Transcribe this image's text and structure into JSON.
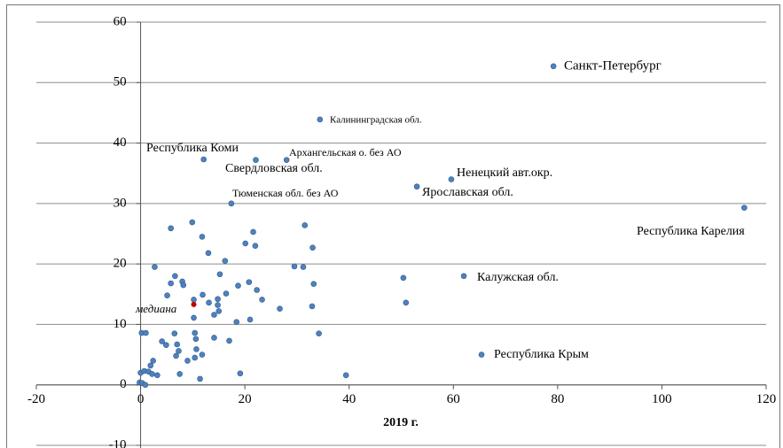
{
  "chart_data": {
    "type": "scatter",
    "x_label": "2019 г.",
    "xlim": [
      -20,
      120
    ],
    "xticks": [
      -20,
      0,
      20,
      40,
      60,
      80,
      100,
      120
    ],
    "ylim": [
      -10,
      60
    ],
    "yticks": [
      -10,
      0,
      10,
      20,
      30,
      40,
      50,
      60
    ],
    "grid": true,
    "series": [
      {
        "color": "#4f81bd",
        "x": [
          79.2,
          34.4,
          12.1,
          22.1,
          28.0,
          59.6,
          53.0,
          17.4,
          115.8,
          62.0,
          65.4,
          5.8,
          9.9,
          11.8,
          21.6,
          31.5,
          20.1,
          22.0,
          33.0,
          13.0,
          16.2,
          2.7,
          29.5,
          31.2,
          6.6,
          15.2,
          50.4,
          8.0,
          8.2,
          5.8,
          18.7,
          20.8,
          33.2,
          22.3,
          5.1,
          11.9,
          16.4,
          10.2,
          14.8,
          23.3,
          13.1,
          14.8,
          32.9,
          50.9,
          26.7,
          15.0,
          14.1,
          10.2,
          21.0,
          18.4,
          0.2,
          1.0,
          6.5,
          10.4,
          10.6,
          34.2,
          14.1,
          17.0,
          4.1,
          4.9,
          7.0,
          7.3,
          10.7,
          6.8,
          11.8,
          10.4,
          2.4,
          9.0,
          1.9,
          0.0,
          0.7,
          1.5,
          3.2,
          2.2,
          7.5,
          19.1,
          39.4,
          11.4,
          -0.2,
          0.3,
          0.9
        ],
        "values": [
          52.7,
          43.9,
          37.3,
          37.2,
          37.2,
          34.0,
          32.8,
          30.0,
          29.3,
          18.0,
          5.0,
          25.9,
          26.9,
          24.5,
          25.3,
          26.4,
          23.4,
          23.0,
          22.7,
          21.8,
          20.5,
          19.5,
          19.6,
          19.5,
          18.0,
          18.3,
          17.7,
          17.1,
          16.5,
          16.8,
          16.4,
          17.0,
          16.7,
          15.7,
          14.8,
          14.9,
          15.1,
          14.1,
          14.2,
          14.1,
          13.6,
          13.2,
          13.0,
          13.6,
          12.6,
          12.2,
          11.6,
          11.1,
          10.8,
          10.4,
          8.6,
          8.6,
          8.5,
          8.6,
          7.6,
          8.5,
          7.8,
          7.3,
          7.2,
          6.6,
          6.7,
          5.6,
          5.9,
          4.8,
          5.0,
          4.5,
          4.0,
          4.0,
          3.2,
          2.0,
          2.3,
          2.2,
          1.6,
          1.8,
          1.8,
          1.9,
          1.6,
          1.0,
          0.4,
          0.3,
          0.0
        ],
        "labels": [
          "Санкт-Петербург",
          "Калининградская обл.",
          "Республика Коми",
          "Свердловская обл.",
          "Архангельская о. без АО",
          "Ненецкий авт.окр.",
          "Ярославская обл.",
          "Тюменская обл. без АО",
          "Республика Карелия",
          "Калужская обл.",
          "Республика Крым"
        ]
      },
      {
        "color": "#c00000",
        "x": [
          10.2
        ],
        "values": [
          13.3
        ],
        "labels": [
          "медиана"
        ]
      }
    ]
  }
}
